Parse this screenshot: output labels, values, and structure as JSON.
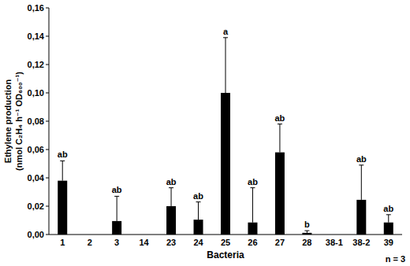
{
  "chart_data": {
    "type": "bar",
    "y_label": [
      "Ethylene production",
      "(nmol C₂H₄ h⁻¹ OD₆₀₀⁻¹)"
    ],
    "x_label": "Bacteria",
    "annotation": "n = 3",
    "categories": [
      "1",
      "2",
      "3",
      "14",
      "23",
      "24",
      "25",
      "26",
      "27",
      "28",
      "38-1",
      "38-2",
      "39"
    ],
    "values": [
      0.038,
      0,
      0.0095,
      0,
      0.02,
      0.0105,
      0.1,
      0.0085,
      0.058,
      0.0012,
      0,
      0.0245,
      0.0085
    ],
    "errors": [
      0.014,
      null,
      0.0175,
      null,
      0.013,
      0.0125,
      0.039,
      0.0245,
      0.02,
      0.0015,
      null,
      0.0245,
      0.0055
    ],
    "letters": [
      "ab",
      null,
      "ab",
      null,
      "ab",
      "ab",
      "a",
      "ab",
      "ab",
      "b",
      null,
      "ab",
      "ab"
    ],
    "color": "#000000",
    "ylim": [
      0,
      0.16
    ],
    "yticks": [
      {
        "value": 0,
        "label": "0,00"
      },
      {
        "value": 0.02,
        "label": "0,02"
      },
      {
        "value": 0.04,
        "label": "0,04"
      },
      {
        "value": 0.06,
        "label": "0,06"
      },
      {
        "value": 0.08,
        "label": "0,08"
      },
      {
        "value": 0.1,
        "label": "0,10"
      },
      {
        "value": 0.12,
        "label": "0,12"
      },
      {
        "value": 0.14,
        "label": "0,14"
      },
      {
        "value": 0.16,
        "label": "0,16"
      }
    ],
    "grid": false
  }
}
